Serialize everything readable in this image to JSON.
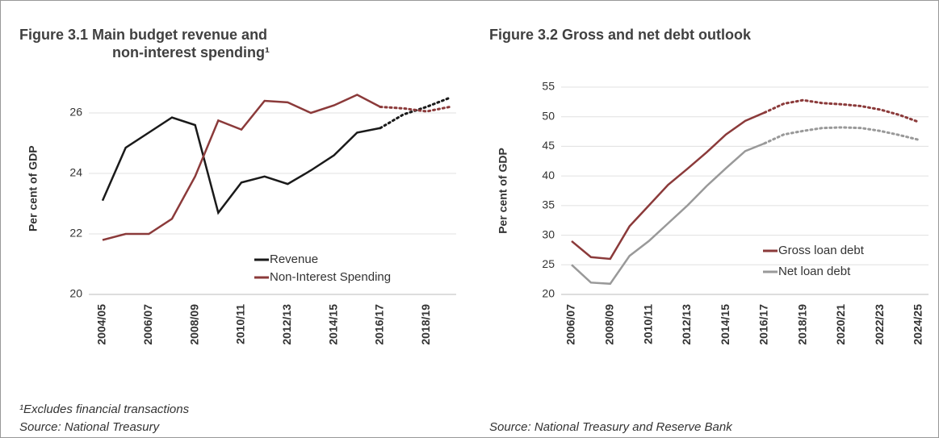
{
  "chart_data": [
    {
      "type": "line",
      "title_lines": [
        "Figure 3.1 Main budget revenue and",
        "non-interest spending¹"
      ],
      "ylabel": "Per cent of GDP",
      "categories": [
        "2004/05",
        null,
        "2006/07",
        null,
        "2008/09",
        null,
        "2010/11",
        null,
        "2012/13",
        null,
        "2014/15",
        null,
        "2016/17",
        null,
        "2018/19",
        null
      ],
      "series": [
        {
          "name": "Revenue",
          "color": "#1a1a1a",
          "values": [
            23.1,
            24.85,
            25.35,
            25.85,
            25.6,
            22.7,
            23.7,
            23.9,
            23.65,
            24.1,
            24.6,
            25.35,
            25.5,
            25.95,
            26.2,
            26.5
          ]
        },
        {
          "name": "Non-Interest Spending",
          "color": "#8b3a3a",
          "values": [
            21.8,
            22.0,
            22.0,
            22.5,
            23.9,
            25.75,
            25.45,
            26.4,
            26.35,
            26.0,
            26.25,
            26.6,
            26.2,
            26.15,
            26.05,
            26.2
          ]
        }
      ],
      "dashed_from_index": 12,
      "ylim": [
        20,
        27
      ],
      "yticks": [
        20,
        22,
        24,
        26
      ],
      "grid": true,
      "legend": "bottom-right",
      "footnote": "¹Excludes financial transactions",
      "source": "Source: National Treasury"
    },
    {
      "type": "line",
      "title_lines": [
        "Figure 3.2 Gross and net debt outlook"
      ],
      "ylabel": "Per cent of GDP",
      "categories": [
        "2006/07",
        null,
        "2008/09",
        null,
        "2010/11",
        null,
        "2012/13",
        null,
        "2014/15",
        null,
        "2016/17",
        null,
        "2018/19",
        null,
        "2020/21",
        null,
        "2022/23",
        null,
        "2024/25"
      ],
      "series": [
        {
          "name": "Gross loan debt",
          "color": "#8b3a3a",
          "values": [
            29,
            26.3,
            26,
            31.5,
            35,
            38.5,
            41.2,
            44,
            47,
            49.3,
            50.7,
            52.2,
            52.8,
            52.3,
            52.1,
            51.8,
            51.2,
            50.3,
            49.1
          ]
        },
        {
          "name": "Net loan debt",
          "color": "#999999",
          "values": [
            25,
            22,
            21.8,
            26.5,
            29,
            32,
            35,
            38.3,
            41.3,
            44.2,
            45.5,
            47,
            47.6,
            48.1,
            48.2,
            48.1,
            47.6,
            46.9,
            46.1
          ]
        }
      ],
      "dashed_from_index": 10,
      "ylim": [
        20,
        55
      ],
      "yticks": [
        20,
        25,
        30,
        35,
        40,
        45,
        50,
        55
      ],
      "grid": true,
      "legend": "middle-right",
      "source": "Source: National Treasury and Reserve Bank"
    }
  ]
}
